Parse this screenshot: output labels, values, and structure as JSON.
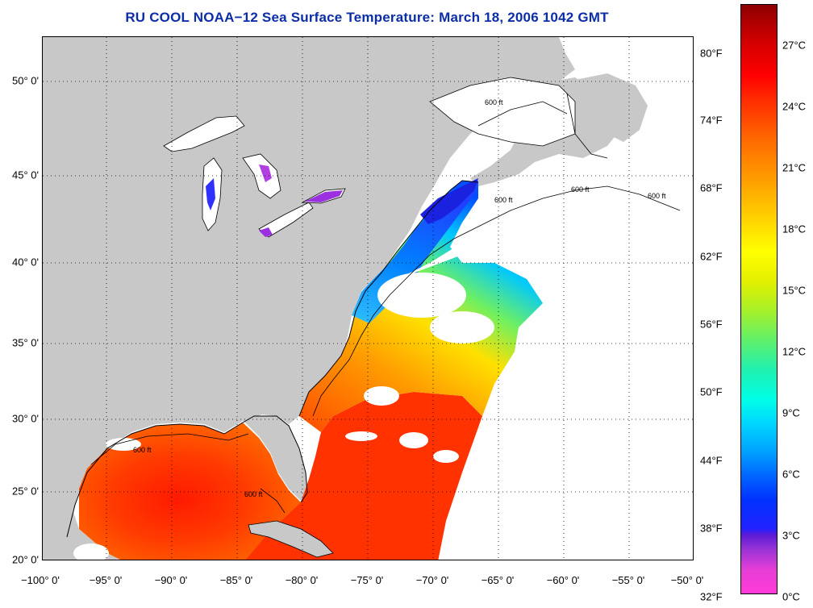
{
  "title": "RU COOL  NOAA−12  Sea Surface Temperature:  March 18, 2006 1042 GMT",
  "map": {
    "lat_labels": [
      "50° 0'",
      "45° 0'",
      "40° 0'",
      "35° 0'",
      "30° 0'",
      "25° 0'",
      "20° 0'"
    ],
    "lon_labels": [
      "−100° 0'",
      "−95° 0'",
      "−90° 0'",
      "−85° 0'",
      "−80° 0'",
      "−75° 0'",
      "−70° 0'",
      "−65° 0'",
      "−60° 0'",
      "−55° 0'",
      "−50° 0'"
    ],
    "depth_contour_label": "600 ft",
    "land_color": "#c8c8c8",
    "cloud_color": "#ffffff"
  },
  "colorbar": {
    "fahrenheit_labels": [
      "80°F",
      "74°F",
      "68°F",
      "62°F",
      "56°F",
      "50°F",
      "44°F",
      "38°F",
      "32°F"
    ],
    "celsius_labels": [
      "27°C",
      "24°C",
      "21°C",
      "18°C",
      "15°C",
      "12°C",
      "9°C",
      "6°C",
      "3°C",
      "0°C"
    ],
    "range_celsius": [
      0,
      29
    ],
    "palette": [
      "#ff3ad7",
      "#5a1bd6",
      "#0033ff",
      "#00d7ff",
      "#5ff06a",
      "#ffff00",
      "#ff9800",
      "#ff0000",
      "#8c0000"
    ]
  }
}
